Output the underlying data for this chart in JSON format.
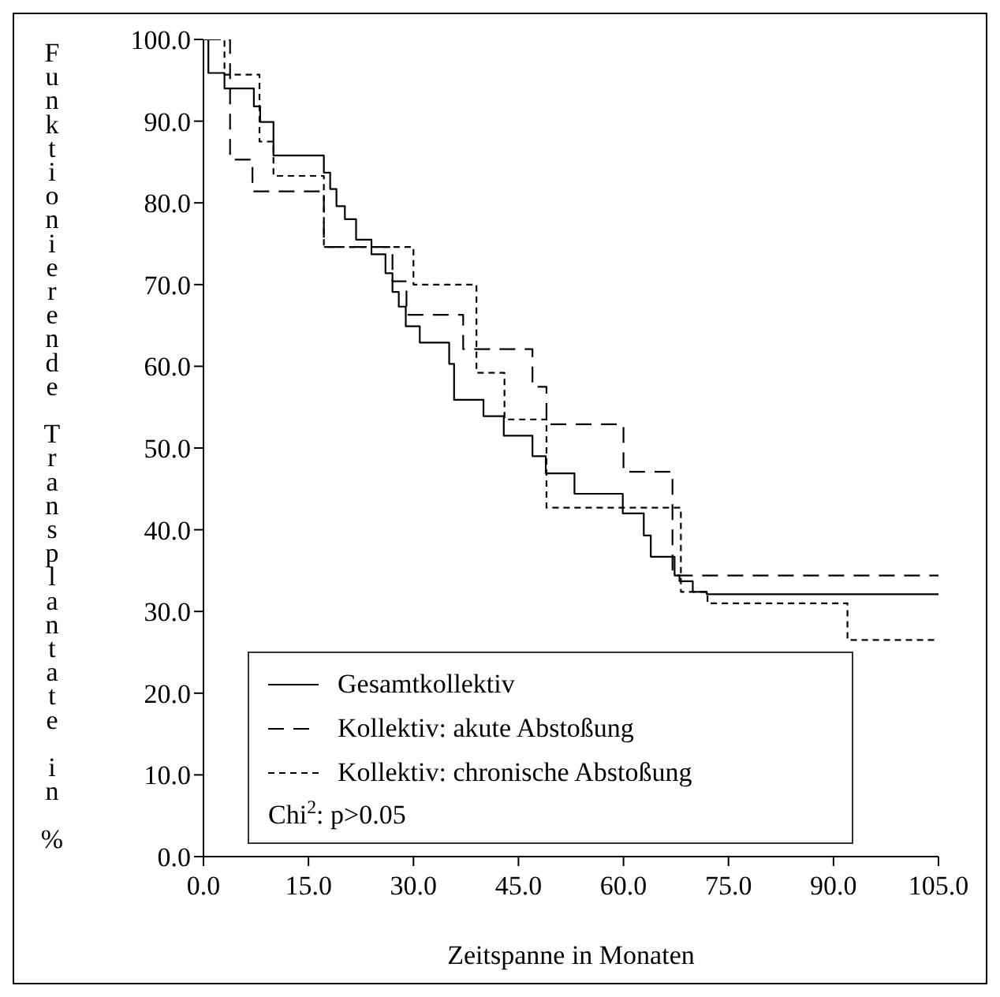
{
  "chart_data": {
    "type": "step",
    "xlabel": "Zeitspanne in Monaten",
    "ylabel": "Funktionierende Transplantate in %",
    "xlim": [
      0,
      105
    ],
    "ylim": [
      0,
      100
    ],
    "xticks": [
      {
        "value": 0,
        "label": "0.0"
      },
      {
        "value": 15,
        "label": "15.0"
      },
      {
        "value": 30,
        "label": "30.0"
      },
      {
        "value": 45,
        "label": "45.0"
      },
      {
        "value": 60,
        "label": "60.0"
      },
      {
        "value": 75,
        "label": "75.0"
      },
      {
        "value": 90,
        "label": "90.0"
      },
      {
        "value": 105,
        "label": "105.0"
      }
    ],
    "yticks": [
      {
        "value": 0,
        "label": "0.0"
      },
      {
        "value": 10,
        "label": "10.0"
      },
      {
        "value": 20,
        "label": "20.0"
      },
      {
        "value": 30,
        "label": "30.0"
      },
      {
        "value": 40,
        "label": "40.0"
      },
      {
        "value": 50,
        "label": "50.0"
      },
      {
        "value": 60,
        "label": "60.0"
      },
      {
        "value": 70,
        "label": "70.0"
      },
      {
        "value": 80,
        "label": "80.0"
      },
      {
        "value": 90,
        "label": "90.0"
      },
      {
        "value": 100,
        "label": "100.0"
      }
    ],
    "legend": "bottom left",
    "marker": "none",
    "annotations": [
      "Chi$^{2}$: p>0.05"
    ],
    "series": [
      {
        "name": "Gesamtkollektiv",
        "color": "#000000",
        "line_style": "solid",
        "x": [
          0,
          0.7,
          3,
          7.2,
          8.1,
          10,
          17.2,
          18.1,
          19,
          20.2,
          21.8,
          24,
          26,
          27,
          27.9,
          28.9,
          30.9,
          35.1,
          35.8,
          40,
          42.9,
          47,
          48.9,
          53,
          59.9,
          62.9,
          63.9,
          67.3,
          68,
          69.9,
          71.9,
          105
        ],
        "values": [
          100,
          95.9,
          94,
          91.8,
          89.9,
          85.8,
          83.7,
          81.7,
          79.6,
          78,
          75.5,
          73.7,
          71.4,
          69.1,
          67.3,
          64.9,
          62.9,
          60.3,
          55.9,
          53.9,
          51.5,
          49,
          46.9,
          44.4,
          42,
          39.3,
          36.7,
          34.4,
          33.7,
          32.4,
          32.1,
          32.1
        ]
      },
      {
        "name": "Kollektiv: akute Abstoßung",
        "color": "#000000",
        "line_style": "dashed",
        "x": [
          0,
          3.8,
          7,
          17.2,
          27,
          29,
          37.1,
          47,
          49,
          60,
          67,
          105
        ],
        "values": [
          100,
          85.3,
          81.4,
          74.6,
          70.4,
          66.3,
          62.1,
          57.5,
          52.9,
          47.1,
          34.4,
          34.4
        ]
      },
      {
        "name": "Kollektiv: chronische Abstoßung",
        "color": "#000000",
        "line_style": "dotted",
        "x": [
          0,
          3,
          8,
          10,
          17.2,
          30,
          39,
          43,
          49,
          68.2,
          72,
          92,
          104.6
        ],
        "values": [
          100,
          95.7,
          87.5,
          83.3,
          74.6,
          70,
          59.2,
          53.5,
          42.7,
          32.4,
          31,
          26.5,
          26.5
        ]
      }
    ]
  }
}
